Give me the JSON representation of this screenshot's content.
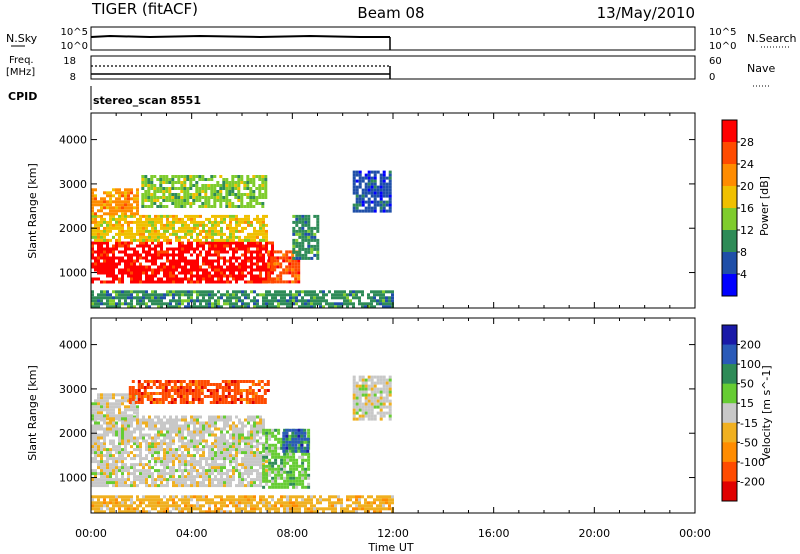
{
  "header": {
    "radar": "TIGER (fitACF)",
    "beam": "Beam 08",
    "date": "13/May/2010"
  },
  "noise_panel": {
    "left_label": "N.Sky",
    "right_label": "N.Search",
    "left_ticks": [
      "10^5",
      "10^0"
    ],
    "right_ticks": [
      "10^5",
      "10^0"
    ]
  },
  "freq_panel": {
    "left_label_1": "Freq.",
    "left_label_2": "[MHz]",
    "right_label": "Nave",
    "left_ticks": [
      "18",
      "8"
    ],
    "right_ticks": [
      "60",
      "0"
    ]
  },
  "cpid_panel": {
    "label": "CPID",
    "value": "stereo_scan 8551"
  },
  "x_axis": {
    "label": "Time UT",
    "ticks": [
      "00:00",
      "04:00",
      "08:00",
      "12:00",
      "16:00",
      "20:00",
      "00:00"
    ],
    "range_hours": [
      0,
      24
    ]
  },
  "colors": {
    "frame": "#000000",
    "background": "#ffffff"
  },
  "chart_data": [
    {
      "type": "heatmap",
      "title": "",
      "xlabel": "",
      "ylabel": "Slant Range [km]",
      "ylim": [
        200,
        4600
      ],
      "yticks": [
        1000,
        2000,
        3000,
        4000
      ],
      "colorbar": {
        "label": "Power [dB]",
        "ticks": [
          "28",
          "24",
          "20",
          "16",
          "12",
          "8",
          "4"
        ],
        "colors": [
          "#ff0000",
          "#ff4b00",
          "#ff8c00",
          "#f0c000",
          "#7fcc2d",
          "#2e8b57",
          "#1f4fa8",
          "#0000ff"
        ]
      },
      "regions": [
        {
          "t": [
            0.0,
            7.2
          ],
          "r": [
            800,
            1700
          ],
          "level": 0
        },
        {
          "t": [
            7.0,
            8.3
          ],
          "r": [
            800,
            1500
          ],
          "level": 1
        },
        {
          "t": [
            0.0,
            7.0
          ],
          "r": [
            1700,
            2300
          ],
          "level": 3
        },
        {
          "t": [
            0.0,
            1.8
          ],
          "r": [
            2300,
            2900
          ],
          "level": 2
        },
        {
          "t": [
            2.0,
            7.0
          ],
          "r": [
            2500,
            3200
          ],
          "level": 4
        },
        {
          "t": [
            8.0,
            9.0
          ],
          "r": [
            1300,
            2300
          ],
          "level": 5
        },
        {
          "t": [
            10.4,
            11.9
          ],
          "r": [
            2400,
            3300
          ],
          "level": 6
        },
        {
          "t": [
            0.0,
            12.0
          ],
          "r": [
            200,
            600
          ],
          "level": 5
        }
      ]
    },
    {
      "type": "heatmap",
      "title": "",
      "xlabel": "Time UT",
      "ylabel": "Slant Range [km]",
      "ylim": [
        200,
        4600
      ],
      "yticks": [
        1000,
        2000,
        3000,
        4000
      ],
      "colorbar": {
        "label": "Velocity [m s^-1]",
        "ticks": [
          "200",
          "100",
          "50",
          "15",
          "-15",
          "-50",
          "-100",
          "-200"
        ],
        "colors": [
          "#1a1aa8",
          "#2a5ab8",
          "#2e8b57",
          "#66cc33",
          "#c8c8c8",
          "#f0b020",
          "#ff8c00",
          "#ff4b00",
          "#e00000"
        ]
      },
      "regions": [
        {
          "t": [
            0.0,
            7.0
          ],
          "r": [
            800,
            1800
          ],
          "level": 4
        },
        {
          "t": [
            0.0,
            6.8
          ],
          "r": [
            1800,
            2400
          ],
          "level": 4
        },
        {
          "t": [
            0.0,
            1.8
          ],
          "r": [
            2300,
            2900
          ],
          "level": 4
        },
        {
          "t": [
            6.8,
            8.6
          ],
          "r": [
            800,
            2100
          ],
          "level": 3
        },
        {
          "t": [
            7.6,
            8.6
          ],
          "r": [
            1600,
            2100
          ],
          "level": 1
        },
        {
          "t": [
            1.5,
            7.0
          ],
          "r": [
            2700,
            3200
          ],
          "level": 7
        },
        {
          "t": [
            10.4,
            11.9
          ],
          "r": [
            2300,
            3300
          ],
          "level": 4
        },
        {
          "t": [
            0.0,
            12.0
          ],
          "r": [
            200,
            600
          ],
          "level": 5
        }
      ]
    }
  ]
}
